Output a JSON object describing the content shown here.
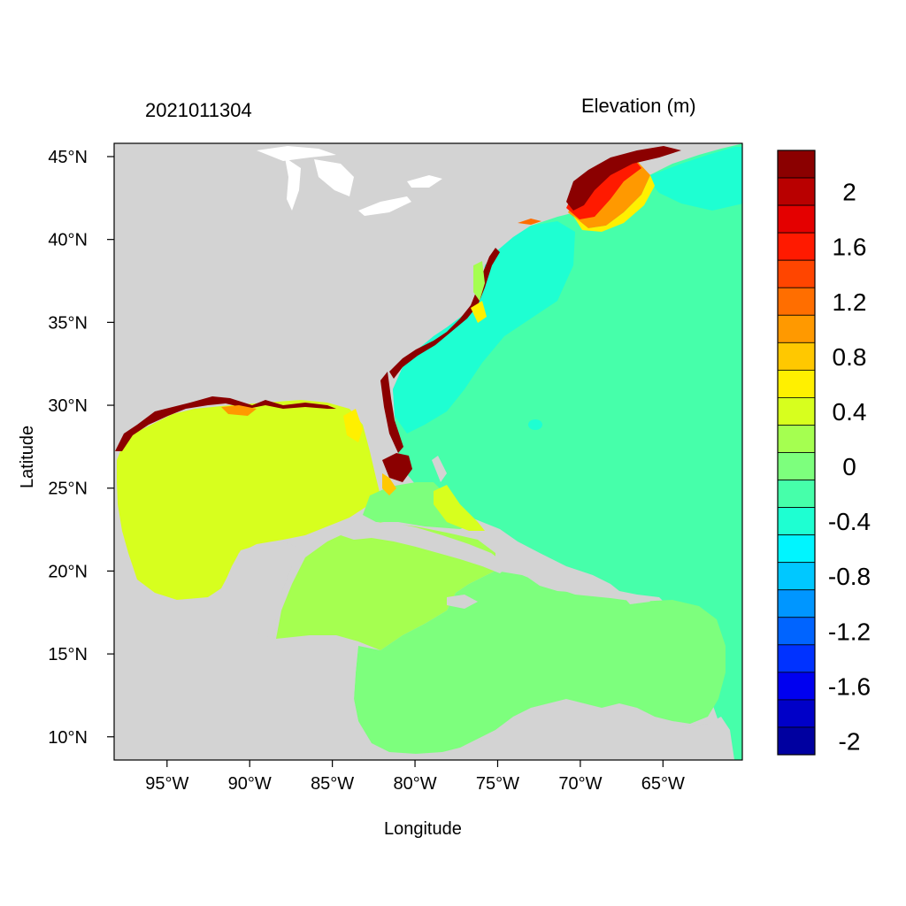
{
  "plot": {
    "date": "2021011304",
    "variable": "Elevation (m)",
    "xlabel": "Longitude",
    "ylabel": "Latitude"
  },
  "axes": {
    "lon_range": [
      -98.2,
      -60.2
    ],
    "lat_range": [
      8.6,
      45.8
    ],
    "x_ticks": [
      {
        "value": -95,
        "label": "95°W"
      },
      {
        "value": -90,
        "label": "90°W"
      },
      {
        "value": -85,
        "label": "85°W"
      },
      {
        "value": -80,
        "label": "80°W"
      },
      {
        "value": -75,
        "label": "75°W"
      },
      {
        "value": -70,
        "label": "70°W"
      },
      {
        "value": -65,
        "label": "65°W"
      }
    ],
    "y_ticks": [
      {
        "value": 10,
        "label": "10°N"
      },
      {
        "value": 15,
        "label": "15°N"
      },
      {
        "value": 20,
        "label": "20°N"
      },
      {
        "value": 25,
        "label": "25°N"
      },
      {
        "value": 30,
        "label": "30°N"
      },
      {
        "value": 35,
        "label": "35°N"
      },
      {
        "value": 40,
        "label": "40°N"
      },
      {
        "value": 45,
        "label": "45°N"
      }
    ]
  },
  "colorbar": {
    "colors_top_to_bottom": [
      "#8b0000",
      "#b90000",
      "#e40000",
      "#ff1a00",
      "#ff4500",
      "#ff6e00",
      "#ff9900",
      "#ffc800",
      "#fff000",
      "#d7ff1e",
      "#a5ff50",
      "#7dff7d",
      "#46ffaa",
      "#1effd2",
      "#00f5ff",
      "#00c8ff",
      "#0096ff",
      "#0064ff",
      "#0032ff",
      "#0000f0",
      "#0000c8",
      "#0000a0"
    ],
    "labels": [
      {
        "label": "2",
        "boundary": 2
      },
      {
        "label": "1.6",
        "boundary": 4
      },
      {
        "label": "1.2",
        "boundary": 6
      },
      {
        "label": "0.8",
        "boundary": 8
      },
      {
        "label": "0.4",
        "boundary": 10
      },
      {
        "label": "0",
        "boundary": 12
      },
      {
        "label": "-0.4",
        "boundary": 14
      },
      {
        "label": "-0.8",
        "boundary": 16
      },
      {
        "label": "-1.2",
        "boundary": 18
      },
      {
        "label": "-1.6",
        "boundary": 20
      },
      {
        "label": "-2",
        "boundary": 22
      }
    ]
  },
  "map_colors": {
    "land": "#d3d3d3",
    "lakes": "#ffffff",
    "atlantic": "#46ffaa",
    "atlantic_coastal": "#1effd2",
    "gulf": "#d7ff1e",
    "caribbean_west": "#a5ff50",
    "caribbean_east": "#7dff7d",
    "surge_peak": "#8b0000"
  }
}
